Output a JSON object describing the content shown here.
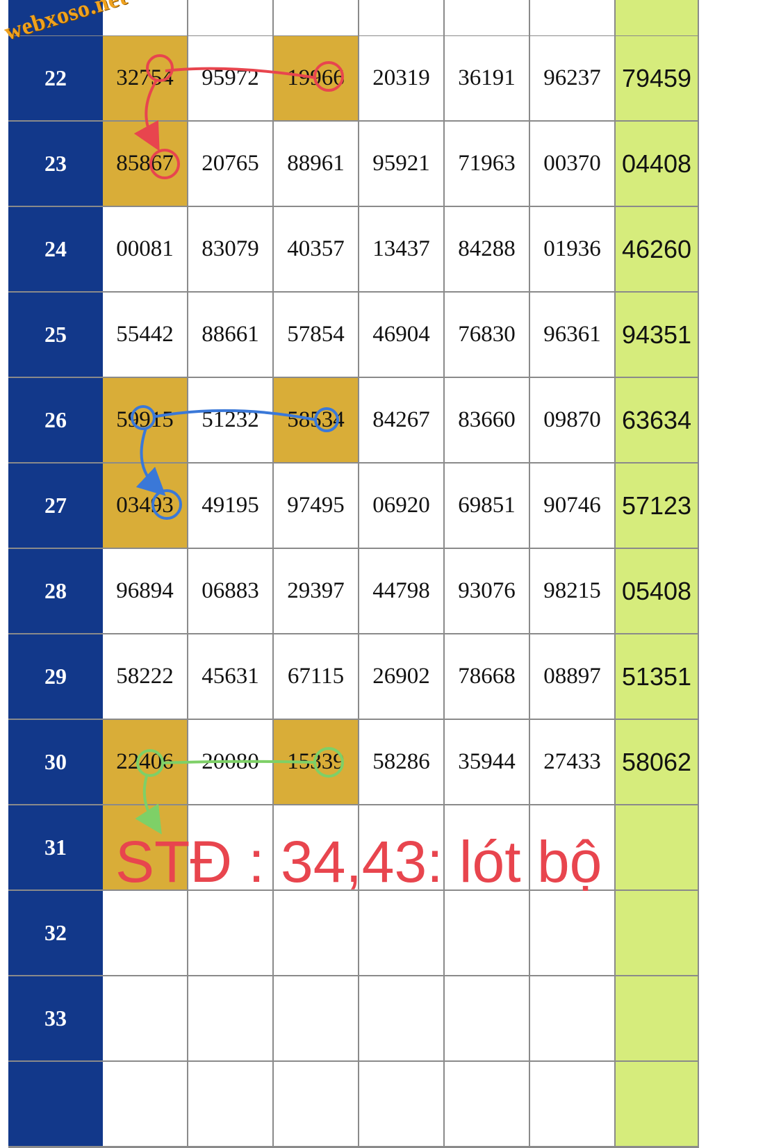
{
  "watermark": "webxoso.net",
  "annotation": "STĐ : 34,43: lót bộ",
  "colors": {
    "day_column": "#12388a",
    "highlight": "#d9ad38",
    "result_column": "#d6ec7c",
    "annotation": "#e8454e",
    "arrow_red": "#e8454e",
    "arrow_blue": "#3a78d8",
    "arrow_green": "#7ed067"
  },
  "rows": [
    {
      "day": "",
      "nums": [
        "",
        "",
        "",
        "",
        "",
        ""
      ],
      "result": "",
      "hl": []
    },
    {
      "day": "22",
      "nums": [
        "32754",
        "95972",
        "19966",
        "20319",
        "36191",
        "96237"
      ],
      "result": "79459",
      "hl": [
        0,
        2
      ]
    },
    {
      "day": "23",
      "nums": [
        "85867",
        "20765",
        "88961",
        "95921",
        "71963",
        "00370"
      ],
      "result": "04408",
      "hl": [
        0
      ]
    },
    {
      "day": "24",
      "nums": [
        "00081",
        "83079",
        "40357",
        "13437",
        "84288",
        "01936"
      ],
      "result": "46260",
      "hl": []
    },
    {
      "day": "25",
      "nums": [
        "55442",
        "88661",
        "57854",
        "46904",
        "76830",
        "96361"
      ],
      "result": "94351",
      "hl": []
    },
    {
      "day": "26",
      "nums": [
        "59915",
        "51232",
        "58534",
        "84267",
        "83660",
        "09870"
      ],
      "result": "63634",
      "hl": [
        0,
        2
      ]
    },
    {
      "day": "27",
      "nums": [
        "03493",
        "49195",
        "97495",
        "06920",
        "69851",
        "90746"
      ],
      "result": "57123",
      "hl": [
        0
      ]
    },
    {
      "day": "28",
      "nums": [
        "96894",
        "06883",
        "29397",
        "44798",
        "93076",
        "98215"
      ],
      "result": "05408",
      "hl": []
    },
    {
      "day": "29",
      "nums": [
        "58222",
        "45631",
        "67115",
        "26902",
        "78668",
        "08897"
      ],
      "result": "51351",
      "hl": []
    },
    {
      "day": "30",
      "nums": [
        "22406",
        "20080",
        "15339",
        "58286",
        "35944",
        "27433"
      ],
      "result": "58062",
      "hl": [
        0,
        2
      ]
    },
    {
      "day": "31",
      "nums": [
        "",
        "",
        "",
        "",
        "",
        ""
      ],
      "result": "",
      "hl": [
        0
      ]
    },
    {
      "day": "32",
      "nums": [
        "",
        "",
        "",
        "",
        "",
        ""
      ],
      "result": "",
      "hl": []
    },
    {
      "day": "33",
      "nums": [
        "",
        "",
        "",
        "",
        "",
        ""
      ],
      "result": "",
      "hl": []
    },
    {
      "day": "",
      "nums": [
        "",
        "",
        "",
        "",
        "",
        ""
      ],
      "result": "",
      "hl": []
    }
  ]
}
